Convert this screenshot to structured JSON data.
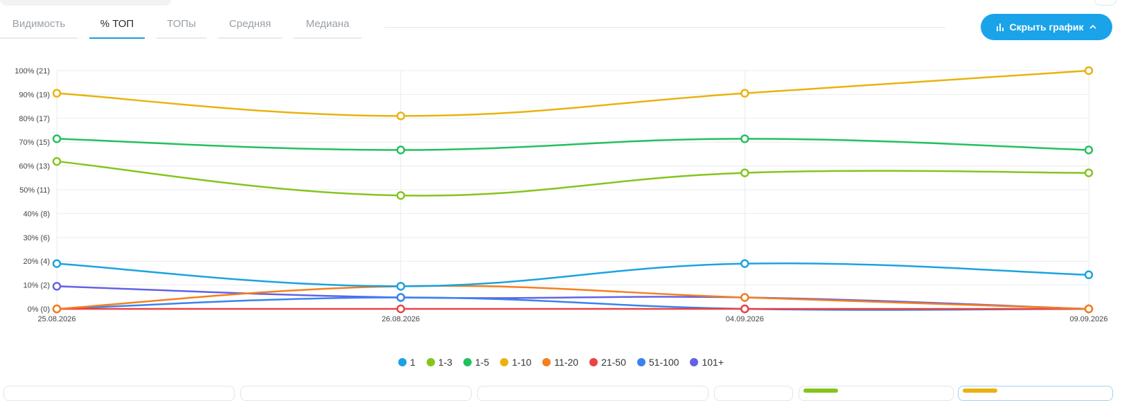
{
  "tabs": [
    {
      "label": "Видимость",
      "active": false
    },
    {
      "label": "% ТОП",
      "active": true
    },
    {
      "label": "ТОПы",
      "active": false
    },
    {
      "label": "Средняя",
      "active": false
    },
    {
      "label": "Медиана",
      "active": false
    }
  ],
  "hide_chart_button": {
    "label": "Скрыть график",
    "icon": "bar-chart-icon",
    "chevron": "chevron-up-icon"
  },
  "colors": {
    "accent": "#1aa3e8",
    "s1": "#19a3e0",
    "s1_3": "#84c51b",
    "s1_5": "#22c05e",
    "s1_10": "#eab20f",
    "s11_20": "#f57f1c",
    "s21_50": "#ea4343",
    "s51_100": "#3a82f0",
    "s101": "#6362e3"
  },
  "chart_data": {
    "type": "line",
    "x": [
      "25.08.2026",
      "26.08.2026",
      "04.09.2026",
      "09.09.2026"
    ],
    "y_ticks": [
      "0% (0)",
      "10% (2)",
      "20% (4)",
      "30% (6)",
      "40% (8)",
      "50% (11)",
      "60% (13)",
      "70% (15)",
      "80% (17)",
      "90% (19)",
      "100% (21)"
    ],
    "ylim": [
      0,
      100
    ],
    "grid": true,
    "legend_position": "bottom-center",
    "series": [
      {
        "name": "1",
        "color": "#19a3e0",
        "values": [
          19,
          9.5,
          19,
          14.3
        ]
      },
      {
        "name": "1-3",
        "color": "#84c51b",
        "values": [
          61.9,
          47.6,
          57.1,
          57.1
        ]
      },
      {
        "name": "1-5",
        "color": "#22c05e",
        "values": [
          71.4,
          66.7,
          71.4,
          66.7
        ]
      },
      {
        "name": "1-10",
        "color": "#eab20f",
        "values": [
          90.5,
          81,
          90.5,
          100
        ]
      },
      {
        "name": "11-20",
        "color": "#f57f1c",
        "values": [
          0,
          9.5,
          4.8,
          0
        ]
      },
      {
        "name": "21-50",
        "color": "#ea4343",
        "values": [
          0,
          0,
          0,
          0
        ]
      },
      {
        "name": "51-100",
        "color": "#3a82f0",
        "values": [
          0,
          4.8,
          0,
          0
        ]
      },
      {
        "name": "101+",
        "color": "#6362e3",
        "values": [
          9.5,
          4.8,
          4.8,
          0
        ]
      }
    ]
  }
}
